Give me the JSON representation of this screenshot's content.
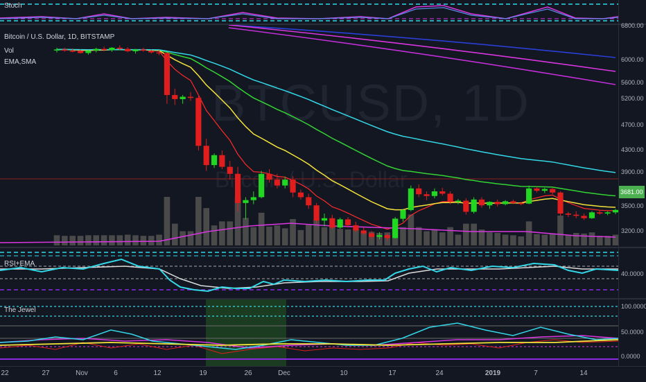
{
  "symbol_title": "Bitcoin / U.S. Dollar, 1D, BITSTAMP",
  "indicators": {
    "vol": "Vol",
    "emasma": "EMA,SMA"
  },
  "watermark": {
    "main": "BTCUSD, 1D",
    "sub": "Bitcoin / U.S. Dollar"
  },
  "panes": {
    "stoch": "Stoch",
    "rsi": "RSI+EMA",
    "jewel": "The Jewel"
  },
  "price_axis": [
    "6800.00",
    "6000.00",
    "5600.00",
    "5200.00",
    "4700.00",
    "4300.00",
    "3900.00",
    "3500.00",
    "3200.00"
  ],
  "last_price": "3681.00",
  "rsi_axis": [
    "40.0000"
  ],
  "jewel_axis": [
    "100.0000",
    "50.0000",
    "0.0000"
  ],
  "x_axis": [
    "22",
    "27",
    "Nov",
    "6",
    "12",
    "19",
    "26",
    "Dec",
    "10",
    "17",
    "24",
    "2019",
    "7",
    "14"
  ],
  "colors": {
    "up": "#22d722",
    "down": "#e01e1e",
    "ema_red": "#ff2a2a",
    "ema_yellow": "#f5e33c",
    "ema_green": "#33d433",
    "ema_cyan": "#33d8e8",
    "ma_purple": "#c22fd8",
    "ma_magenta": "#d936e0",
    "ma_blue": "#2a3fd8",
    "rsi": "#33d8e8",
    "stoch": "#d936e0"
  },
  "chart_data": {
    "type": "candlestick",
    "title": "Bitcoin / U.S. Dollar, 1D, BITSTAMP",
    "ylim": [
      3050,
      6850
    ],
    "candles": [
      {
        "o": 6420,
        "h": 6460,
        "l": 6380,
        "c": 6430
      },
      {
        "o": 6430,
        "h": 6460,
        "l": 6390,
        "c": 6410
      },
      {
        "o": 6410,
        "h": 6450,
        "l": 6380,
        "c": 6400
      },
      {
        "o": 6400,
        "h": 6430,
        "l": 6360,
        "c": 6370
      },
      {
        "o": 6370,
        "h": 6420,
        "l": 6340,
        "c": 6410
      },
      {
        "o": 6410,
        "h": 6460,
        "l": 6380,
        "c": 6440
      },
      {
        "o": 6440,
        "h": 6480,
        "l": 6400,
        "c": 6420
      },
      {
        "o": 6420,
        "h": 6470,
        "l": 6390,
        "c": 6460
      },
      {
        "o": 6460,
        "h": 6500,
        "l": 6420,
        "c": 6440
      },
      {
        "o": 6440,
        "h": 6470,
        "l": 6380,
        "c": 6400
      },
      {
        "o": 6400,
        "h": 6440,
        "l": 6360,
        "c": 6430
      },
      {
        "o": 6430,
        "h": 6460,
        "l": 6390,
        "c": 6410
      },
      {
        "o": 6410,
        "h": 6430,
        "l": 6360,
        "c": 6380
      },
      {
        "o": 6380,
        "h": 6420,
        "l": 6330,
        "c": 6370
      },
      {
        "o": 6370,
        "h": 6380,
        "l": 5500,
        "c": 5650
      },
      {
        "o": 5650,
        "h": 5760,
        "l": 5480,
        "c": 5580
      },
      {
        "o": 5580,
        "h": 5650,
        "l": 5500,
        "c": 5620
      },
      {
        "o": 5620,
        "h": 5700,
        "l": 5550,
        "c": 5600
      },
      {
        "o": 5600,
        "h": 5660,
        "l": 4700,
        "c": 4780
      },
      {
        "o": 4780,
        "h": 4900,
        "l": 4350,
        "c": 4450
      },
      {
        "o": 4450,
        "h": 4650,
        "l": 4400,
        "c": 4620
      },
      {
        "o": 4620,
        "h": 4700,
        "l": 4380,
        "c": 4420
      },
      {
        "o": 4420,
        "h": 4520,
        "l": 4200,
        "c": 4300
      },
      {
        "o": 4300,
        "h": 4420,
        "l": 3650,
        "c": 3800
      },
      {
        "o": 3800,
        "h": 3900,
        "l": 3520,
        "c": 3850
      },
      {
        "o": 3850,
        "h": 4000,
        "l": 3780,
        "c": 3900
      },
      {
        "o": 3900,
        "h": 4350,
        "l": 3880,
        "c": 4300
      },
      {
        "o": 4300,
        "h": 4380,
        "l": 4150,
        "c": 4200
      },
      {
        "o": 4200,
        "h": 4300,
        "l": 4050,
        "c": 4100
      },
      {
        "o": 4100,
        "h": 4250,
        "l": 4050,
        "c": 4200
      },
      {
        "o": 4200,
        "h": 4260,
        "l": 3900,
        "c": 3980
      },
      {
        "o": 3980,
        "h": 4030,
        "l": 3860,
        "c": 3900
      },
      {
        "o": 3900,
        "h": 3960,
        "l": 3700,
        "c": 3760
      },
      {
        "o": 3760,
        "h": 3800,
        "l": 3450,
        "c": 3500
      },
      {
        "o": 3500,
        "h": 3620,
        "l": 3400,
        "c": 3540
      },
      {
        "o": 3540,
        "h": 3600,
        "l": 3350,
        "c": 3380
      },
      {
        "o": 3380,
        "h": 3550,
        "l": 3360,
        "c": 3520
      },
      {
        "o": 3520,
        "h": 3560,
        "l": 3380,
        "c": 3420
      },
      {
        "o": 3420,
        "h": 3480,
        "l": 3300,
        "c": 3330
      },
      {
        "o": 3330,
        "h": 3380,
        "l": 3250,
        "c": 3280
      },
      {
        "o": 3280,
        "h": 3320,
        "l": 3180,
        "c": 3220
      },
      {
        "o": 3220,
        "h": 3300,
        "l": 3180,
        "c": 3250
      },
      {
        "o": 3250,
        "h": 3280,
        "l": 3150,
        "c": 3200
      },
      {
        "o": 3200,
        "h": 3560,
        "l": 3190,
        "c": 3530
      },
      {
        "o": 3530,
        "h": 3700,
        "l": 3480,
        "c": 3680
      },
      {
        "o": 3680,
        "h": 4100,
        "l": 3660,
        "c": 4050
      },
      {
        "o": 4050,
        "h": 4120,
        "l": 3900,
        "c": 3950
      },
      {
        "o": 3950,
        "h": 4000,
        "l": 3850,
        "c": 3920
      },
      {
        "o": 3920,
        "h": 4050,
        "l": 3880,
        "c": 4000
      },
      {
        "o": 4000,
        "h": 4060,
        "l": 3930,
        "c": 3960
      },
      {
        "o": 3960,
        "h": 4000,
        "l": 3780,
        "c": 3820
      },
      {
        "o": 3820,
        "h": 3870,
        "l": 3780,
        "c": 3840
      },
      {
        "o": 3840,
        "h": 3880,
        "l": 3600,
        "c": 3650
      },
      {
        "o": 3650,
        "h": 3900,
        "l": 3620,
        "c": 3860
      },
      {
        "o": 3860,
        "h": 3900,
        "l": 3720,
        "c": 3760
      },
      {
        "o": 3760,
        "h": 3830,
        "l": 3700,
        "c": 3820
      },
      {
        "o": 3820,
        "h": 3860,
        "l": 3740,
        "c": 3780
      },
      {
        "o": 3780,
        "h": 3850,
        "l": 3760,
        "c": 3830
      },
      {
        "o": 3830,
        "h": 3860,
        "l": 3780,
        "c": 3800
      },
      {
        "o": 3800,
        "h": 3820,
        "l": 3760,
        "c": 3790
      },
      {
        "o": 3790,
        "h": 4100,
        "l": 3780,
        "c": 4050
      },
      {
        "o": 4050,
        "h": 4080,
        "l": 3980,
        "c": 4010
      },
      {
        "o": 4010,
        "h": 4060,
        "l": 3970,
        "c": 4040
      },
      {
        "o": 4040,
        "h": 4060,
        "l": 3950,
        "c": 3980
      },
      {
        "o": 3980,
        "h": 4000,
        "l": 3580,
        "c": 3620
      },
      {
        "o": 3620,
        "h": 3650,
        "l": 3560,
        "c": 3600
      },
      {
        "o": 3600,
        "h": 3660,
        "l": 3540,
        "c": 3580
      },
      {
        "o": 3580,
        "h": 3620,
        "l": 3510,
        "c": 3540
      },
      {
        "o": 3540,
        "h": 3660,
        "l": 3530,
        "c": 3640
      },
      {
        "o": 3640,
        "h": 3670,
        "l": 3600,
        "c": 3620
      },
      {
        "o": 3620,
        "h": 3660,
        "l": 3590,
        "c": 3640
      },
      {
        "o": 3640,
        "h": 3700,
        "l": 3610,
        "c": 3681
      }
    ]
  }
}
